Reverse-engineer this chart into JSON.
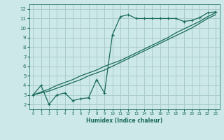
{
  "title": "",
  "xlabel": "Humidex (Indice chaleur)",
  "ylabel": "",
  "bg_color": "#cce8e8",
  "grid_color": "#aacccc",
  "line_color": "#1a6b5a",
  "xlim": [
    -0.5,
    23.5
  ],
  "ylim": [
    1.5,
    12.5
  ],
  "xticks": [
    0,
    1,
    2,
    3,
    4,
    5,
    6,
    7,
    8,
    9,
    10,
    11,
    12,
    13,
    14,
    15,
    16,
    17,
    18,
    19,
    20,
    21,
    22,
    23
  ],
  "yticks": [
    2,
    3,
    4,
    5,
    6,
    7,
    8,
    9,
    10,
    11,
    12
  ],
  "curve1_x": [
    0,
    1,
    2,
    3,
    4,
    5,
    6,
    7,
    8,
    9,
    10,
    11,
    12,
    13,
    14,
    15,
    16,
    17,
    18,
    19,
    20,
    21,
    22,
    23
  ],
  "curve1_y": [
    3.0,
    4.0,
    2.0,
    3.0,
    3.2,
    2.4,
    2.6,
    2.7,
    4.6,
    3.2,
    9.3,
    11.2,
    11.4,
    11.0,
    11.0,
    11.0,
    11.0,
    11.0,
    11.0,
    10.7,
    10.8,
    11.1,
    11.6,
    11.7
  ],
  "curve2_x": [
    0,
    1,
    2,
    3,
    4,
    5,
    6,
    7,
    8,
    9,
    10,
    11,
    12,
    13,
    14,
    15,
    16,
    17,
    18,
    19,
    20,
    21,
    22,
    23
  ],
  "curve2_y": [
    3.0,
    3.2,
    3.4,
    3.7,
    4.0,
    4.3,
    4.6,
    5.0,
    5.3,
    5.6,
    6.0,
    6.4,
    6.8,
    7.2,
    7.6,
    8.0,
    8.4,
    8.8,
    9.2,
    9.6,
    10.0,
    10.5,
    11.0,
    11.4
  ],
  "curve3_x": [
    0,
    1,
    2,
    3,
    4,
    5,
    6,
    7,
    8,
    9,
    10,
    11,
    12,
    13,
    14,
    15,
    16,
    17,
    18,
    19,
    20,
    21,
    22,
    23
  ],
  "curve3_y": [
    3.0,
    3.3,
    3.6,
    4.0,
    4.3,
    4.6,
    5.0,
    5.3,
    5.6,
    6.0,
    6.3,
    6.6,
    7.0,
    7.4,
    7.8,
    8.2,
    8.6,
    9.0,
    9.5,
    9.9,
    10.3,
    10.7,
    11.2,
    11.6
  ]
}
